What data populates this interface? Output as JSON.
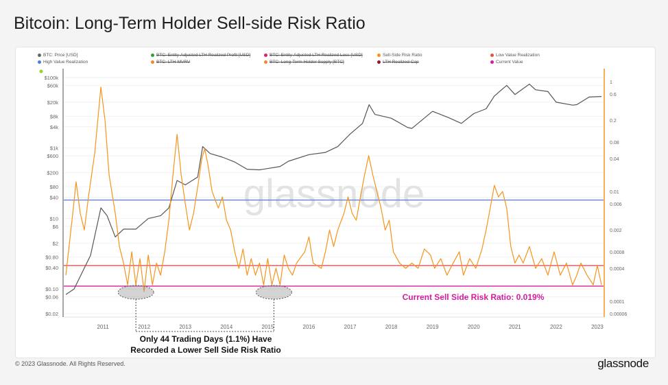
{
  "title": "Bitcoin: Long-Term Holder Sell-side Risk Ratio",
  "legend": [
    {
      "label": "BTC: Price [USD]",
      "color": "#666666",
      "active": true
    },
    {
      "label": "BTC: Entity-Adjusted LTH Realized Profit [USD]",
      "color": "#2e9e3e",
      "active": false
    },
    {
      "label": "BTC: Entity-Adjusted LTH Realized Loss [USD]",
      "color": "#d6207a",
      "active": false
    },
    {
      "label": "Sell-Side Risk Ratio",
      "color": "#f7931a",
      "active": true
    },
    {
      "label": "Low Value Realization",
      "color": "#e05050",
      "active": true
    },
    {
      "label": "High Value Realization",
      "color": "#4a7fe0",
      "active": true
    },
    {
      "label": "BTC: LTH-MVRV",
      "color": "#f0892a",
      "active": false
    },
    {
      "label": "BTC: Long-Term Holder Supply [BTC]",
      "color": "#f0892a",
      "active": false
    },
    {
      "label": "LTH Realized Cap",
      "color": "#8b1a3a",
      "active": false
    },
    {
      "label": "Current Value",
      "color": "#d61ba0",
      "active": true
    }
  ],
  "chart_data": {
    "type": "line",
    "x_axis": {
      "ticks": [
        "2011",
        "2012",
        "2013",
        "2014",
        "2015",
        "2016",
        "2017",
        "2018",
        "2019",
        "2020",
        "2021",
        "2022",
        "2023"
      ],
      "range": [
        2010.55,
        2023.65
      ]
    },
    "y_left": {
      "scale": "log",
      "range": [
        0.02,
        100000
      ],
      "ticks": [
        "$100k",
        "$60k",
        "$20k",
        "$8k",
        "$4k",
        "$1k",
        "$600",
        "$200",
        "$80",
        "$40",
        "$10",
        "$6",
        "$2",
        "$0.80",
        "$0.40",
        "$0.10",
        "$0.06",
        "$0.02"
      ],
      "tick_values": [
        100000,
        60000,
        20000,
        8000,
        4000,
        1000,
        600,
        200,
        80,
        40,
        10,
        6,
        2,
        0.8,
        0.4,
        0.1,
        0.06,
        0.02
      ]
    },
    "y_right": {
      "scale": "log",
      "range": [
        6e-05,
        1
      ],
      "ticks": [
        "1",
        "0.6",
        "0.2",
        "0.08",
        "0.04",
        "0.01",
        "0.006",
        "0.002",
        "0.0008",
        "0.0004",
        "0.0001",
        "0.00006"
      ],
      "tick_values": [
        1,
        0.6,
        0.2,
        0.08,
        0.04,
        0.01,
        0.006,
        0.002,
        0.0008,
        0.0004,
        0.0001,
        6e-05
      ]
    },
    "watermark": "glassnode",
    "series": [
      {
        "name": "BTC: Price [USD]",
        "axis": "left",
        "color": "#555555",
        "points": [
          [
            2010.6,
            0.07
          ],
          [
            2010.8,
            0.1
          ],
          [
            2011.0,
            0.3
          ],
          [
            2011.2,
            0.9
          ],
          [
            2011.45,
            20
          ],
          [
            2011.6,
            12
          ],
          [
            2011.8,
            3
          ],
          [
            2012.0,
            5
          ],
          [
            2012.3,
            5
          ],
          [
            2012.6,
            10
          ],
          [
            2012.9,
            12
          ],
          [
            2013.1,
            20
          ],
          [
            2013.3,
            120
          ],
          [
            2013.5,
            90
          ],
          [
            2013.8,
            150
          ],
          [
            2013.92,
            1100
          ],
          [
            2014.1,
            700
          ],
          [
            2014.4,
            550
          ],
          [
            2014.7,
            400
          ],
          [
            2015.0,
            250
          ],
          [
            2015.3,
            240
          ],
          [
            2015.8,
            300
          ],
          [
            2016.0,
            420
          ],
          [
            2016.5,
            650
          ],
          [
            2016.9,
            750
          ],
          [
            2017.2,
            1100
          ],
          [
            2017.5,
            2500
          ],
          [
            2017.8,
            5000
          ],
          [
            2017.96,
            17000
          ],
          [
            2018.1,
            9000
          ],
          [
            2018.5,
            7000
          ],
          [
            2018.9,
            3800
          ],
          [
            2019.0,
            3600
          ],
          [
            2019.5,
            11000
          ],
          [
            2019.9,
            7200
          ],
          [
            2020.2,
            5000
          ],
          [
            2020.5,
            9500
          ],
          [
            2020.8,
            13000
          ],
          [
            2021.0,
            30000
          ],
          [
            2021.3,
            60000
          ],
          [
            2021.5,
            33000
          ],
          [
            2021.85,
            65000
          ],
          [
            2022.0,
            45000
          ],
          [
            2022.3,
            40000
          ],
          [
            2022.5,
            20000
          ],
          [
            2022.9,
            16500
          ],
          [
            2023.0,
            17000
          ],
          [
            2023.3,
            28000
          ],
          [
            2023.6,
            29000
          ]
        ]
      },
      {
        "name": "Sell-Side Risk Ratio",
        "axis": "right",
        "color": "#f7931a",
        "points": [
          [
            2010.6,
            0.0003
          ],
          [
            2010.75,
            0.003
          ],
          [
            2010.85,
            0.015
          ],
          [
            2010.95,
            0.004
          ],
          [
            2011.05,
            0.002
          ],
          [
            2011.15,
            0.008
          ],
          [
            2011.3,
            0.05
          ],
          [
            2011.45,
            0.8
          ],
          [
            2011.55,
            0.2
          ],
          [
            2011.65,
            0.02
          ],
          [
            2011.8,
            0.004
          ],
          [
            2011.9,
            0.001
          ],
          [
            2012.0,
            0.0005
          ],
          [
            2012.1,
            0.0002
          ],
          [
            2012.2,
            0.0008
          ],
          [
            2012.3,
            0.0002
          ],
          [
            2012.4,
            0.0006
          ],
          [
            2012.5,
            0.00015
          ],
          [
            2012.6,
            0.0007
          ],
          [
            2012.7,
            0.0002
          ],
          [
            2012.8,
            0.0005
          ],
          [
            2012.9,
            0.0003
          ],
          [
            2013.0,
            0.0008
          ],
          [
            2013.1,
            0.003
          ],
          [
            2013.2,
            0.02
          ],
          [
            2013.3,
            0.11
          ],
          [
            2013.4,
            0.02
          ],
          [
            2013.5,
            0.006
          ],
          [
            2013.6,
            0.002
          ],
          [
            2013.7,
            0.004
          ],
          [
            2013.8,
            0.012
          ],
          [
            2013.9,
            0.04
          ],
          [
            2013.97,
            0.06
          ],
          [
            2014.05,
            0.03
          ],
          [
            2014.15,
            0.01
          ],
          [
            2014.3,
            0.005
          ],
          [
            2014.4,
            0.008
          ],
          [
            2014.5,
            0.003
          ],
          [
            2014.6,
            0.002
          ],
          [
            2014.7,
            0.0008
          ],
          [
            2014.8,
            0.0004
          ],
          [
            2014.9,
            0.0009
          ],
          [
            2015.0,
            0.0003
          ],
          [
            2015.1,
            0.0006
          ],
          [
            2015.2,
            0.0003
          ],
          [
            2015.3,
            0.0005
          ],
          [
            2015.4,
            0.0002
          ],
          [
            2015.5,
            0.0006
          ],
          [
            2015.6,
            0.0002
          ],
          [
            2015.7,
            0.0004
          ],
          [
            2015.8,
            0.0002
          ],
          [
            2015.9,
            0.0007
          ],
          [
            2016.0,
            0.0004
          ],
          [
            2016.1,
            0.0003
          ],
          [
            2016.2,
            0.0005
          ],
          [
            2016.4,
            0.0008
          ],
          [
            2016.5,
            0.0015
          ],
          [
            2016.6,
            0.0005
          ],
          [
            2016.8,
            0.0004
          ],
          [
            2016.9,
            0.0008
          ],
          [
            2017.0,
            0.002
          ],
          [
            2017.1,
            0.001
          ],
          [
            2017.2,
            0.002
          ],
          [
            2017.35,
            0.004
          ],
          [
            2017.45,
            0.008
          ],
          [
            2017.55,
            0.004
          ],
          [
            2017.65,
            0.003
          ],
          [
            2017.75,
            0.008
          ],
          [
            2017.85,
            0.02
          ],
          [
            2017.95,
            0.045
          ],
          [
            2018.05,
            0.02
          ],
          [
            2018.15,
            0.01
          ],
          [
            2018.25,
            0.005
          ],
          [
            2018.35,
            0.002
          ],
          [
            2018.45,
            0.003
          ],
          [
            2018.55,
            0.0008
          ],
          [
            2018.7,
            0.0005
          ],
          [
            2018.85,
            0.0004
          ],
          [
            2019.0,
            0.0005
          ],
          [
            2019.15,
            0.0004
          ],
          [
            2019.3,
            0.0009
          ],
          [
            2019.45,
            0.0007
          ],
          [
            2019.55,
            0.0004
          ],
          [
            2019.7,
            0.0006
          ],
          [
            2019.85,
            0.0003
          ],
          [
            2020.0,
            0.0005
          ],
          [
            2020.15,
            0.0008
          ],
          [
            2020.25,
            0.0003
          ],
          [
            2020.4,
            0.0006
          ],
          [
            2020.55,
            0.0004
          ],
          [
            2020.7,
            0.0009
          ],
          [
            2020.8,
            0.002
          ],
          [
            2020.9,
            0.005
          ],
          [
            2021.0,
            0.013
          ],
          [
            2021.1,
            0.008
          ],
          [
            2021.2,
            0.01
          ],
          [
            2021.3,
            0.005
          ],
          [
            2021.4,
            0.001
          ],
          [
            2021.5,
            0.0005
          ],
          [
            2021.6,
            0.0007
          ],
          [
            2021.7,
            0.0005
          ],
          [
            2021.85,
            0.001
          ],
          [
            2022.0,
            0.0004
          ],
          [
            2022.15,
            0.0006
          ],
          [
            2022.3,
            0.0003
          ],
          [
            2022.45,
            0.0008
          ],
          [
            2022.6,
            0.0003
          ],
          [
            2022.75,
            0.0005
          ],
          [
            2022.9,
            0.0002
          ],
          [
            2023.0,
            0.0003
          ],
          [
            2023.1,
            0.0005
          ],
          [
            2023.25,
            0.0003
          ],
          [
            2023.4,
            0.0002
          ],
          [
            2023.5,
            0.00045
          ],
          [
            2023.6,
            0.0002
          ]
        ]
      }
    ],
    "reference_lines": [
      {
        "name": "High Value Realization",
        "axis": "right",
        "value": 0.007,
        "color": "#4a7fe0"
      },
      {
        "name": "Low Value Realization",
        "axis": "right",
        "value": 0.00045,
        "color": "#e05050"
      },
      {
        "name": "Current Value",
        "axis": "right",
        "value": 0.00019,
        "color": "#d61ba0"
      }
    ],
    "annotations": {
      "current": "Current Sell Side Risk Ratio: 0.019%",
      "lower_days": [
        "Only 44 Trading Days (1.1%) Have",
        "Recorded a Lower Sell Side Risk Ratio"
      ],
      "highlight_periods": [
        2012.3,
        2015.65
      ]
    }
  },
  "footer": {
    "copyright": "© 2023 Glassnode. All Rights Reserved.",
    "logo": "glassnode"
  }
}
